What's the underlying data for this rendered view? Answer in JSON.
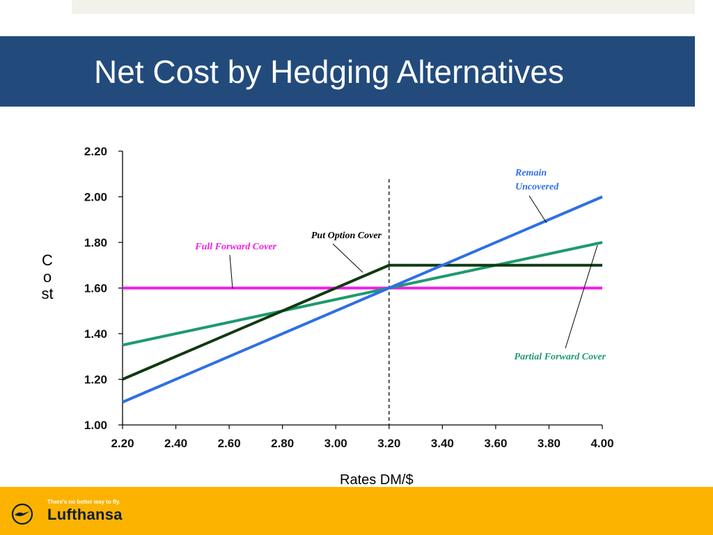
{
  "slide": {
    "title": "Net Cost by Hedging Alternatives"
  },
  "footer": {
    "slogan": "There's no better way to fly.",
    "brand": "Lufthansa"
  },
  "colors": {
    "title_bar": "#224b7c",
    "footer_bar": "#fbb300",
    "remain_uncovered": "#2f6ee6",
    "partial_forward": "#1e9a6c",
    "put_option": "#0f3a12",
    "full_forward": "#ee1ee6"
  },
  "chart_data": {
    "type": "line",
    "title": "",
    "xlabel": "Rates DM/$",
    "ylabel": "Cost",
    "xlim": [
      2.2,
      4.0
    ],
    "ylim": [
      1.0,
      2.2
    ],
    "x_ticks": [
      "2.20",
      "2.40",
      "2.60",
      "2.80",
      "3.00",
      "3.20",
      "3.40",
      "3.60",
      "3.80",
      "4.00"
    ],
    "y_ticks": [
      "1.00",
      "1.20",
      "1.40",
      "1.60",
      "1.80",
      "2.00",
      "2.20"
    ],
    "vertical_reference_x": 3.2,
    "grid": false,
    "series": [
      {
        "name": "Remain Uncovered",
        "x": [
          2.2,
          4.0
        ],
        "y": [
          1.1,
          2.0
        ],
        "label_lines": [
          "Remain",
          "Uncovered"
        ]
      },
      {
        "name": "Partial Forward Cover",
        "x": [
          2.2,
          4.0
        ],
        "y": [
          1.35,
          1.8
        ],
        "label_lines": [
          "Partial Forward Cover"
        ]
      },
      {
        "name": "Put Option Cover",
        "x": [
          2.2,
          3.2,
          4.0
        ],
        "y": [
          1.2,
          1.7,
          1.7
        ],
        "label_lines": [
          "Put Option Cover"
        ]
      },
      {
        "name": "Full Forward Cover",
        "x": [
          2.2,
          4.0
        ],
        "y": [
          1.6,
          1.6
        ],
        "label_lines": [
          "Full Forward Cover"
        ]
      }
    ]
  }
}
